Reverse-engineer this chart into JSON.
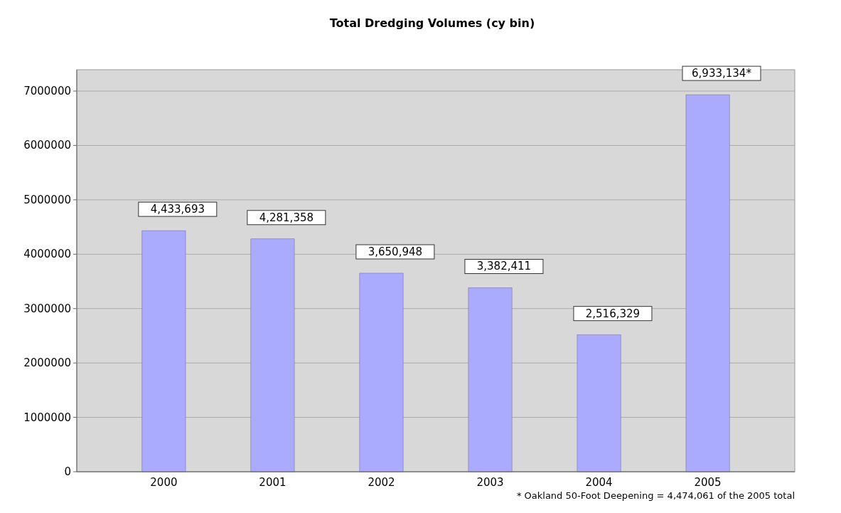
{
  "chart_data": {
    "type": "bar",
    "title": "Total Dredging Volumes (cy bin)",
    "categories": [
      "2000",
      "2001",
      "2002",
      "2003",
      "2004",
      "2005"
    ],
    "values": [
      4433693,
      4281358,
      3650948,
      3382411,
      2516329,
      6933134
    ],
    "value_labels": [
      "4,433,693",
      "4,281,358",
      "3,650,948",
      "3,382,411",
      "2,516,329",
      "6,933,134*"
    ],
    "color": "#aaaaff",
    "ylim": [
      0,
      7000000
    ],
    "yticks": [
      0,
      1000000,
      2000000,
      3000000,
      4000000,
      5000000,
      6000000,
      7000000
    ],
    "grid": "y",
    "annotations": [
      "* Oakland 50-Foot Deepening = 4,474,061 of the 2005 total"
    ]
  }
}
